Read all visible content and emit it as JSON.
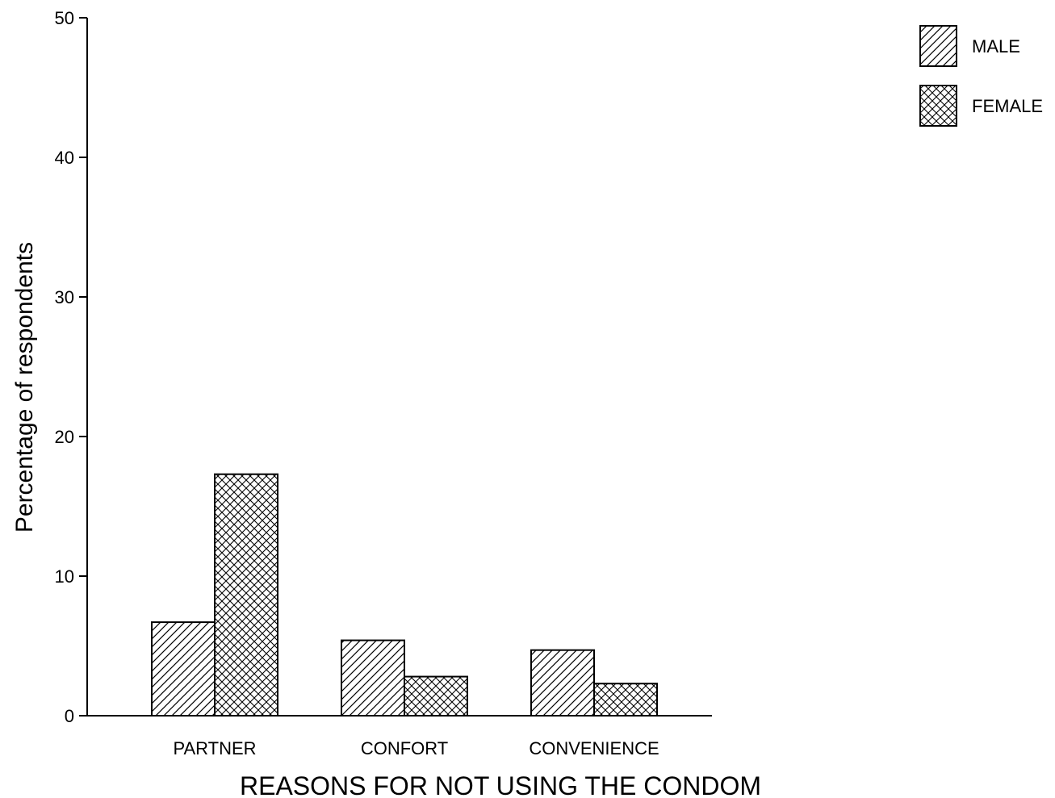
{
  "chart_data": {
    "type": "bar",
    "title": "",
    "xlabel": "REASONS FOR NOT USING THE CONDOM",
    "ylabel": "Percentage of respondents",
    "categories": [
      "PARTNER",
      "CONFORT",
      "CONVENIENCE"
    ],
    "series": [
      {
        "name": "MALE",
        "values": [
          6.7,
          5.4,
          4.7
        ],
        "pattern": "diagonal-hatch"
      },
      {
        "name": "FEMALE",
        "values": [
          17.3,
          2.8,
          2.3
        ],
        "pattern": "cross-hatch"
      }
    ],
    "ylim": [
      0,
      50
    ],
    "yticks": [
      0,
      10,
      20,
      30,
      40,
      50
    ],
    "grid": false,
    "legend": "top-right",
    "colors": {
      "stroke": "#000000",
      "background": "#ffffff"
    }
  }
}
